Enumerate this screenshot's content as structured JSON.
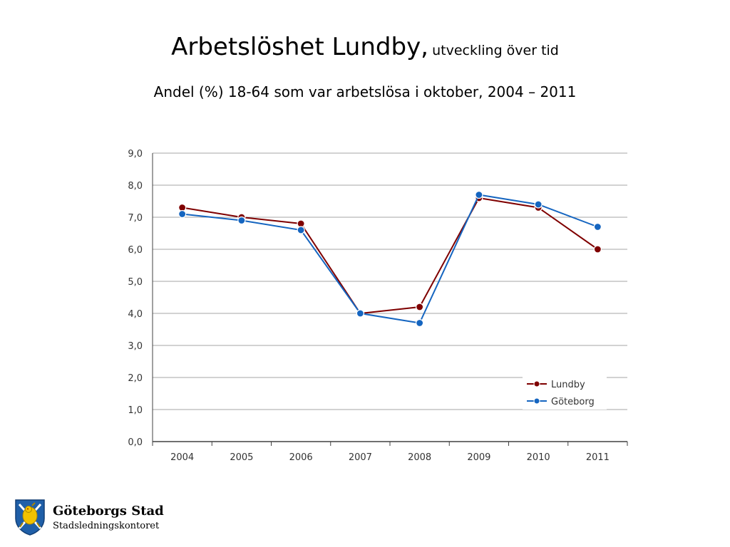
{
  "header": {
    "title": "Arbetslöshet Lundby,",
    "title_suffix": "utveckling över tid",
    "subtitle": "Andel (%) 18-64 som var arbetslösa i oktober, 2004 – 2011"
  },
  "chart_data": {
    "type": "line",
    "categories": [
      "2004",
      "2005",
      "2006",
      "2007",
      "2008",
      "2009",
      "2010",
      "2011"
    ],
    "series": [
      {
        "name": "Lundby",
        "color": "#7f0000",
        "values": [
          7.3,
          7.0,
          6.8,
          4.0,
          4.2,
          7.6,
          7.3,
          6.0
        ]
      },
      {
        "name": "Göteborg",
        "color": "#1565c0",
        "values": [
          7.1,
          6.9,
          6.6,
          4.0,
          3.7,
          7.7,
          7.4,
          6.7
        ]
      }
    ],
    "ylim": [
      0,
      9
    ],
    "ytick_labels": [
      "0,0",
      "1,0",
      "2,0",
      "3,0",
      "4,0",
      "5,0",
      "6,0",
      "7,0",
      "8,0",
      "9,0"
    ],
    "grid": true,
    "legend": "bottom-right"
  },
  "footer": {
    "org_name": "Göteborgs Stad",
    "org_department": "Stadsledningskontoret",
    "logo_icon": "goteborg-lion-crest-icon",
    "logo_colors": {
      "blue": "#1f5fa8",
      "gold": "#f2c200"
    }
  }
}
